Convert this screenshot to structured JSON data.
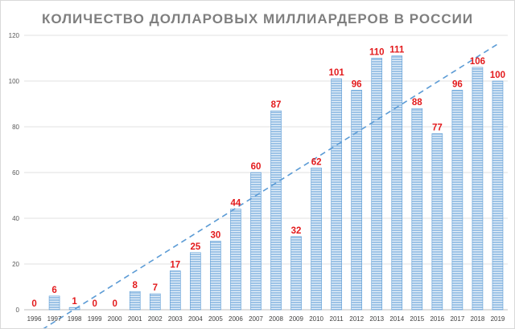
{
  "chart_data": {
    "type": "bar",
    "title": "КОЛИЧЕСТВО ДОЛЛАРОВЫХ МИЛЛИАРДЕРОВ В РОССИИ",
    "xlabel": "",
    "ylabel": "",
    "categories": [
      "1996",
      "1997",
      "1998",
      "1999",
      "2000",
      "2001",
      "2002",
      "2003",
      "2004",
      "2005",
      "2006",
      "2007",
      "2008",
      "2009",
      "2010",
      "2011",
      "2012",
      "2013",
      "2014",
      "2015",
      "2016",
      "2017",
      "2018",
      "2019"
    ],
    "values": [
      0,
      6,
      1,
      0,
      0,
      8,
      7,
      17,
      25,
      30,
      44,
      60,
      87,
      32,
      62,
      101,
      96,
      110,
      111,
      88,
      77,
      96,
      106,
      100
    ],
    "data_labels": [
      "0",
      "6",
      "1",
      "0",
      "0",
      "8",
      "7",
      "17",
      "25",
      "30",
      "44",
      "60",
      "87",
      "32",
      "62",
      "101",
      "96",
      "110",
      "111",
      "88",
      "77",
      "96",
      "106",
      "100"
    ],
    "ylim": [
      0,
      120
    ],
    "yticks": [
      "0",
      "20",
      "40",
      "60",
      "80",
      "100",
      "120"
    ],
    "grid": true,
    "legend": "none",
    "trendline": {
      "type": "linear",
      "style": "dashed"
    },
    "colors": {
      "bar_fill": "#9dc3e6",
      "bar_stripe": "#ffffff",
      "bar_edge": "#5b9bd5",
      "label": "#e31a1c",
      "trend": "#5b9bd5"
    }
  }
}
